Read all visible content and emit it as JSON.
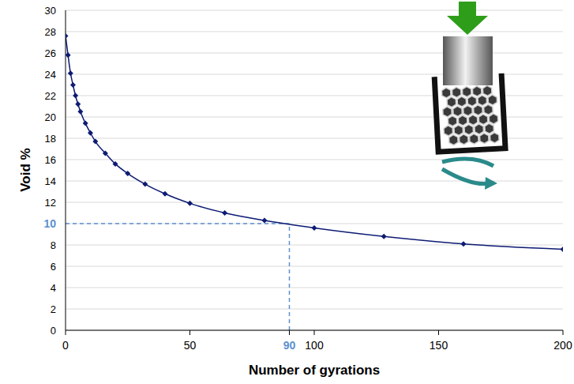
{
  "chart_data": {
    "type": "line",
    "x_label": "Number of gyrations",
    "y_label": "Void %",
    "x": [
      0,
      1,
      2,
      3,
      4,
      5,
      6,
      8,
      10,
      12,
      16,
      20,
      25,
      32,
      40,
      50,
      64,
      80,
      100,
      128,
      160,
      200
    ],
    "values": [
      27.6,
      25.8,
      24.1,
      23.0,
      22.0,
      21.2,
      20.5,
      19.4,
      18.5,
      17.7,
      16.6,
      15.6,
      14.7,
      13.7,
      12.8,
      11.9,
      11.0,
      10.3,
      9.6,
      8.8,
      8.1,
      7.6
    ],
    "color": "#0d1b73",
    "marker": "diamond",
    "xlim": [
      0,
      200
    ],
    "xticks": [
      0,
      50,
      90,
      100,
      150,
      200
    ],
    "ylim": [
      0,
      30
    ],
    "yticks": [
      0,
      2,
      4,
      6,
      8,
      10,
      12,
      14,
      16,
      18,
      20,
      22,
      24,
      26,
      28,
      30
    ],
    "grid": true,
    "reference_point": {
      "x": 90,
      "y": 10,
      "color": "#5b8fd0"
    }
  }
}
